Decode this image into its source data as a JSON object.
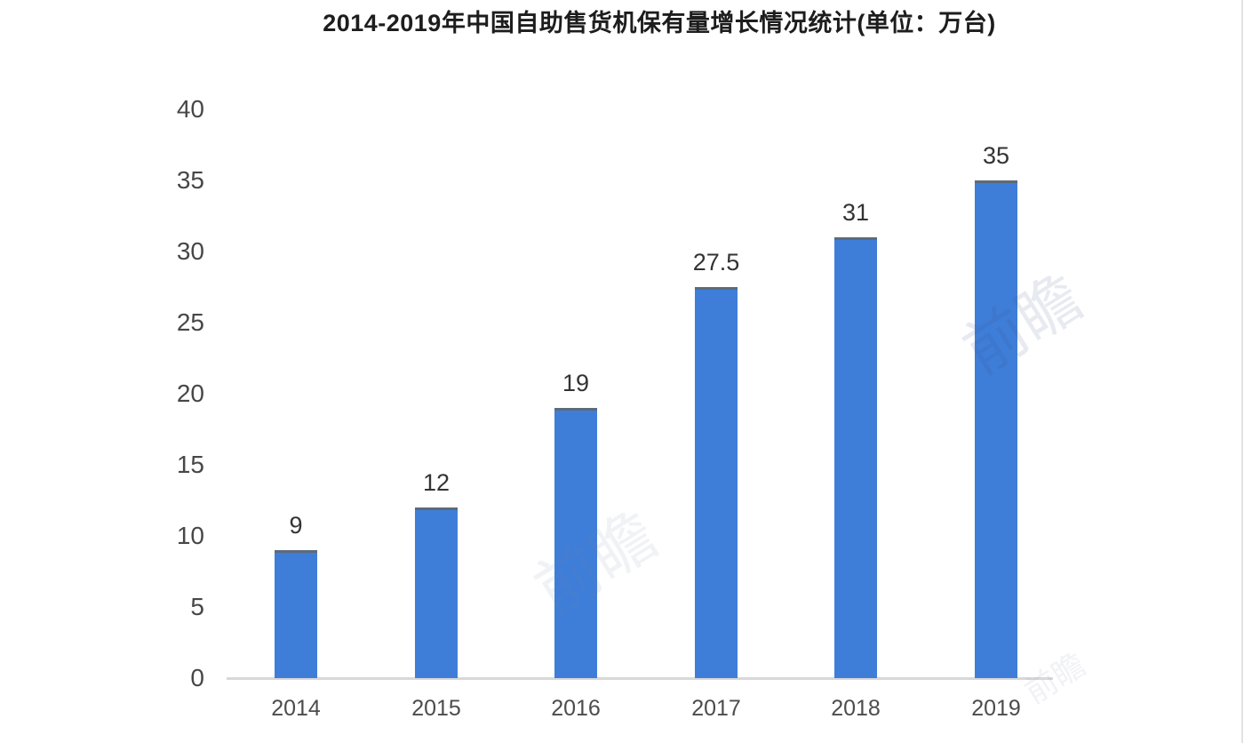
{
  "chart_data": {
    "type": "bar",
    "title": "2014-2019年中国自助售货机保有量增长情况统计(单位：万台)",
    "unit": "万台",
    "categories": [
      "2014",
      "2015",
      "2016",
      "2017",
      "2018",
      "2019"
    ],
    "values": [
      9,
      12,
      19,
      27.5,
      31,
      35
    ],
    "data_labels": [
      "9",
      "12",
      "19",
      "27.5",
      "31",
      "35"
    ],
    "xlabel": "",
    "ylabel": "",
    "ylim": [
      0,
      40
    ],
    "y_ticks": [
      0,
      5,
      10,
      15,
      20,
      25,
      30,
      35,
      40
    ],
    "grid": false,
    "legend": false,
    "bar_color": "#3e7ed9",
    "bar_top_edge_color": "#5d6a79",
    "axis_line_color": "#d8d8d8",
    "title_color": "#1d1d1d",
    "y_tick_label_color": "#474747",
    "x_tick_label_color": "#4c4c4c",
    "data_label_color": "#333333"
  },
  "watermark": {
    "text": "前瞻",
    "color_on_white": "rgba(115,130,155,0.10)",
    "color_on_bar": "rgba(60,85,130,0.12)"
  }
}
